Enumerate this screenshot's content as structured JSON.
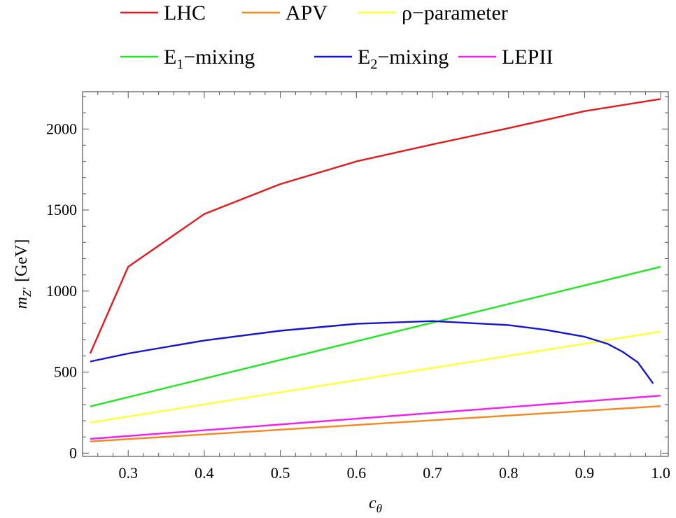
{
  "chart_data": {
    "type": "line",
    "title": "",
    "xlabel_main": "c",
    "xlabel_sub": "θ",
    "ylabel_main": "m",
    "ylabel_sub": "Z′",
    "ylabel_unit": "[GeV]",
    "xlim": [
      0.24,
      1.01
    ],
    "ylim": [
      -20,
      2230
    ],
    "xticks": [
      0.3,
      0.4,
      0.5,
      0.6,
      0.7,
      0.8,
      0.9,
      1.0
    ],
    "xtick_labels": [
      "0.3",
      "0.4",
      "0.5",
      "0.6",
      "0.7",
      "0.8",
      "0.9",
      "1.0"
    ],
    "yticks": [
      0,
      500,
      1000,
      1500,
      2000
    ],
    "ytick_labels": [
      "0",
      "500",
      "1000",
      "1500",
      "2000"
    ],
    "grid": false,
    "legend_position": "top",
    "series": [
      {
        "name": "LHC",
        "legend_main": "LHC",
        "legend_sub": "",
        "legend_tail": "",
        "color": "#e41a1c",
        "x": [
          0.25,
          0.3,
          0.4,
          0.5,
          0.6,
          0.7,
          0.8,
          0.9,
          1.0
        ],
        "y": [
          615,
          1150,
          1475,
          1660,
          1800,
          1905,
          2005,
          2110,
          2185
        ]
      },
      {
        "name": "APV",
        "legend_main": "APV",
        "legend_sub": "",
        "legend_tail": "",
        "color": "#f7861c",
        "x": [
          0.25,
          1.0
        ],
        "y": [
          72,
          290
        ]
      },
      {
        "name": "ρ−parameter",
        "legend_main": "ρ−parameter",
        "legend_sub": "",
        "legend_tail": "",
        "color": "#ffff33",
        "x": [
          0.25,
          1.0
        ],
        "y": [
          188,
          750
        ]
      },
      {
        "name": "E1−mixing",
        "legend_main": "E",
        "legend_sub": "1",
        "legend_tail": "−mixing",
        "color": "#1ee81e",
        "x": [
          0.25,
          1.0
        ],
        "y": [
          288,
          1150
        ]
      },
      {
        "name": "E2−mixing",
        "legend_main": "E",
        "legend_sub": "2",
        "legend_tail": "−mixing",
        "color": "#1414d2",
        "x": [
          0.25,
          0.3,
          0.4,
          0.5,
          0.6,
          0.7,
          0.8,
          0.85,
          0.9,
          0.93,
          0.95,
          0.97,
          0.99
        ],
        "y": [
          565,
          615,
          695,
          755,
          798,
          815,
          790,
          760,
          718,
          675,
          625,
          560,
          430
        ]
      },
      {
        "name": "LEPII",
        "legend_main": "LEPII",
        "legend_sub": "",
        "legend_tail": "",
        "color": "#f21ef2",
        "x": [
          0.25,
          1.0
        ],
        "y": [
          88,
          355
        ]
      }
    ]
  }
}
